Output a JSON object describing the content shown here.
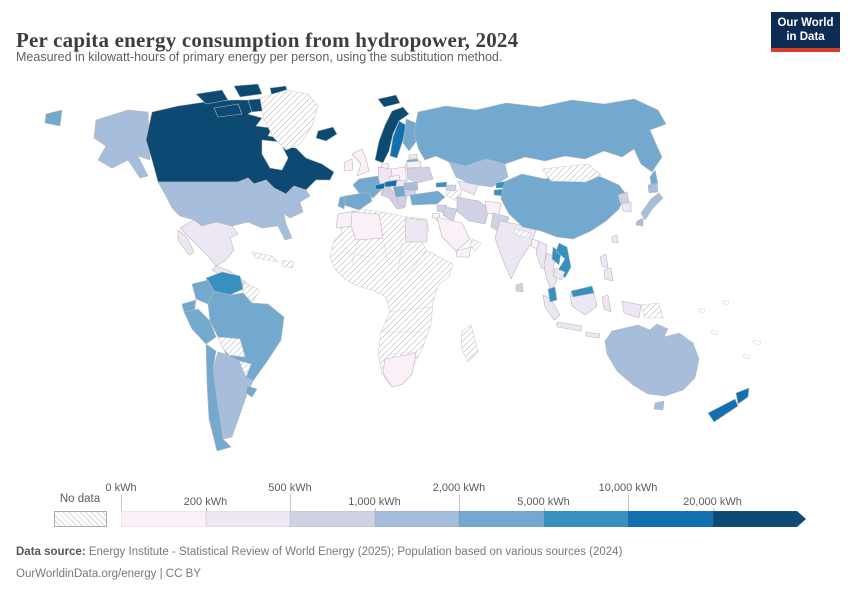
{
  "header": {
    "title": "Per capita energy consumption from hydropower, 2024",
    "subtitle": "Measured in kilowatt-hours of primary energy per person, using the substitution method."
  },
  "logo": {
    "line1": "Our World",
    "line2": "in Data",
    "bg_color": "#0d2c54",
    "accent_color": "#d73c2d"
  },
  "legend": {
    "no_data_label": "No data",
    "ticks": [
      "0 kWh",
      "200 kWh",
      "500 kWh",
      "1,000 kWh",
      "2,000 kWh",
      "5,000 kWh",
      "10,000 kWh",
      "20,000 kWh"
    ]
  },
  "footer": {
    "source_label": "Data source:",
    "source_text": " Energy Institute - Statistical Review of World Energy (2025); Population based on various sources (2024)",
    "citation": "OurWorldinData.org/energy | CC BY"
  },
  "chart_data": {
    "type": "heatmap",
    "subtype": "choropleth-world-map",
    "title": "Per capita energy consumption from hydropower, 2024",
    "unit": "kWh",
    "legend_position": "bottom",
    "no_data": {
      "label": "No data",
      "style": "diagonal-hatch"
    },
    "bins": [
      {
        "range": "0–200 kWh",
        "color": "#fbf0f7"
      },
      {
        "range": "200–500 kWh",
        "color": "#ece7f2"
      },
      {
        "range": "500–1,000 kWh",
        "color": "#d1d1e6"
      },
      {
        "range": "1,000–2,000 kWh",
        "color": "#a6bddb"
      },
      {
        "range": "2,000–5,000 kWh",
        "color": "#74a9cf"
      },
      {
        "range": "5,000–10,000 kWh",
        "color": "#3690c0"
      },
      {
        "range": "10,000–20,000 kWh",
        "color": "#1070b1"
      },
      {
        "range": "20,000+ kWh",
        "color": "#0d4a73"
      }
    ],
    "countries": {
      "canada": 7,
      "canada-arctic-islands": 7,
      "alaska": 3,
      "usa": 3,
      "mexico": 1,
      "central-america": 1,
      "costa-rica-panama": 4,
      "cuba": "nd",
      "hispaniola": "nd",
      "greenland": "nd",
      "iceland": 7,
      "chukotka": 4,
      "venezuela": 5,
      "guyanas": "nd",
      "colombia": 4,
      "ecuador": 4,
      "peru": 4,
      "brazil": 4,
      "bolivia": "nd",
      "paraguay": "nd",
      "chile": 4,
      "argentina": 3,
      "uruguay": 4,
      "svalbard": 7,
      "norway": 7,
      "sweden": 6,
      "finland": 4,
      "denmark": 0,
      "united-kingdom": 0,
      "ireland": 0,
      "estonia": 1,
      "latvia": 4,
      "lithuania": 1,
      "poland": 0,
      "germany": 1,
      "france": 4,
      "switzerland": 6,
      "austria": 6,
      "czechia": 0,
      "spain": 4,
      "portugal": 4,
      "italy": 2,
      "hungary": 1,
      "romania": 3,
      "balkans": 4,
      "bulgaria": 2,
      "greece": 2,
      "ukraine": 2,
      "belarus": 0,
      "russia": 4,
      "sakhalin": 4,
      "kazakhstan": 3,
      "uzbekistan": 1,
      "turkmenistan": "nd",
      "kyrgyzstan": 5,
      "tajikistan": 5,
      "georgia": 5,
      "azerbaijan": 2,
      "turkey": 4,
      "syria": 2,
      "iraq": 2,
      "iran": 2,
      "afghanistan": 0,
      "pakistan": 2,
      "saudi-arabia": 0,
      "jordan-israel": 0,
      "yemen": 0,
      "oman": "nd",
      "africa-no-data": "nd",
      "morocco": 0,
      "algeria": 0,
      "egypt": 1,
      "south-africa": 0,
      "madagascar": "nd",
      "india": 1,
      "sri-lanka": 2,
      "nepal": "nd",
      "bangladesh": 0,
      "myanmar": 1,
      "thailand": 1,
      "laos": 5,
      "vietnam": 5,
      "cambodia": 1,
      "malaysia": 5,
      "indonesia": 1,
      "papua-new-guinea": "nd",
      "philippines": 1,
      "china": 4,
      "mongolia": "nd",
      "north-korea": 2,
      "south-korea": 1,
      "japan": 3,
      "taiwan": 1,
      "australia": 3,
      "new-zealand": 6
    }
  }
}
